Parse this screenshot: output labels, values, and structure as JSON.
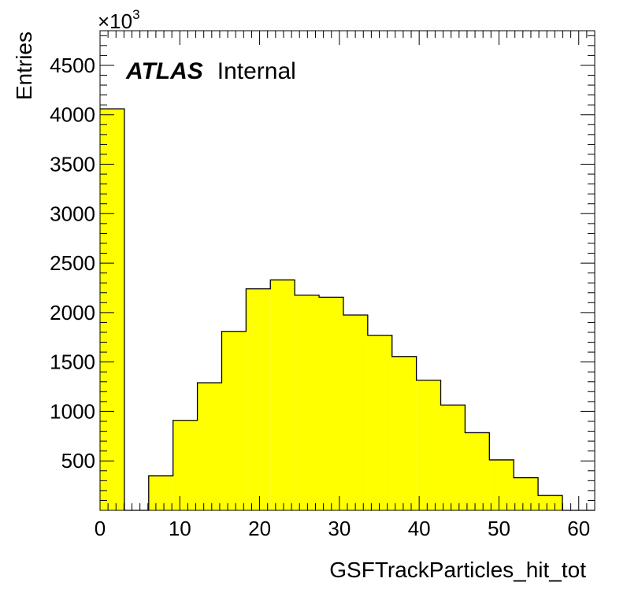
{
  "chart_data": {
    "type": "bar",
    "histogram": true,
    "bin_edges": [
      0,
      3.05,
      6.1,
      9.15,
      12.2,
      15.25,
      18.3,
      21.35,
      24.4,
      27.45,
      30.5,
      33.55,
      36.6,
      39.65,
      42.7,
      45.75,
      48.8,
      51.85,
      54.9,
      57.95,
      61,
      62
    ],
    "values": [
      4060,
      0,
      350,
      910,
      1290,
      1810,
      2240,
      2330,
      2175,
      2155,
      1975,
      1770,
      1555,
      1315,
      1065,
      785,
      510,
      330,
      150,
      0,
      0
    ],
    "fill_color": "#ffff00",
    "edge_color": "#000000",
    "xlim": [
      0,
      62
    ],
    "ylim": [
      0,
      4850
    ],
    "x_ticks": [
      "0",
      "10",
      "20",
      "30",
      "40",
      "50",
      "60"
    ],
    "x_tick_values": [
      0,
      10,
      20,
      30,
      40,
      50,
      60
    ],
    "y_ticks": [
      "500",
      "1000",
      "1500",
      "2000",
      "2500",
      "3000",
      "3500",
      "4000",
      "4500"
    ],
    "y_tick_values": [
      500,
      1000,
      1500,
      2000,
      2500,
      3000,
      3500,
      4000,
      4500
    ],
    "y_multiplier_base": "×10",
    "y_multiplier_exp": "3",
    "xlabel": "GSFTrackParticles_hit_tot",
    "ylabel": "Entries",
    "annotation": {
      "bold": "ATLAS",
      "rest": "Internal"
    },
    "grid": false
  }
}
